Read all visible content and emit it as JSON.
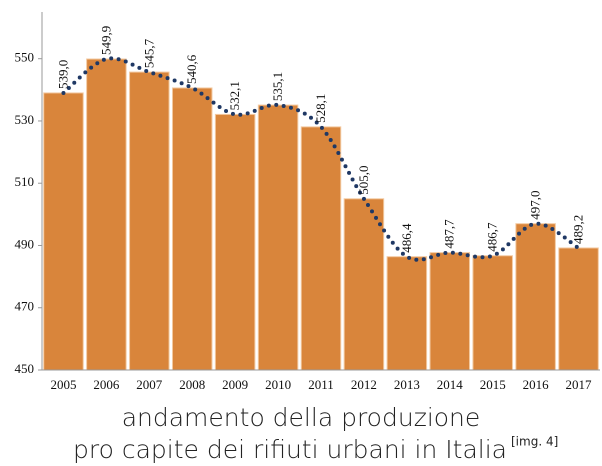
{
  "chart_data": {
    "type": "bar",
    "categories": [
      "2005",
      "2006",
      "2007",
      "2008",
      "2009",
      "2010",
      "2011",
      "2012",
      "2013",
      "2014",
      "2015",
      "2016",
      "2017"
    ],
    "values": [
      539.0,
      549.9,
      545.7,
      540.6,
      532.1,
      535.1,
      528.1,
      505.0,
      486.4,
      487.7,
      486.7,
      497.0,
      489.2
    ],
    "value_labels": [
      "539,0",
      "549,9",
      "545,7",
      "540,6",
      "532,1",
      "535,1",
      "528,1",
      "505,0",
      "486,4",
      "487,7",
      "486,7",
      "497,0",
      "489,2"
    ],
    "color": "#d9853b",
    "line_color": "#1f3864",
    "ylim": [
      450,
      565
    ],
    "yticks": [
      450,
      470,
      490,
      510,
      530,
      550
    ],
    "caption": [
      "andamento della produzione",
      "pro capite dei rifiuti urbani in Italia"
    ],
    "caption_ref": "[img. 4]"
  }
}
